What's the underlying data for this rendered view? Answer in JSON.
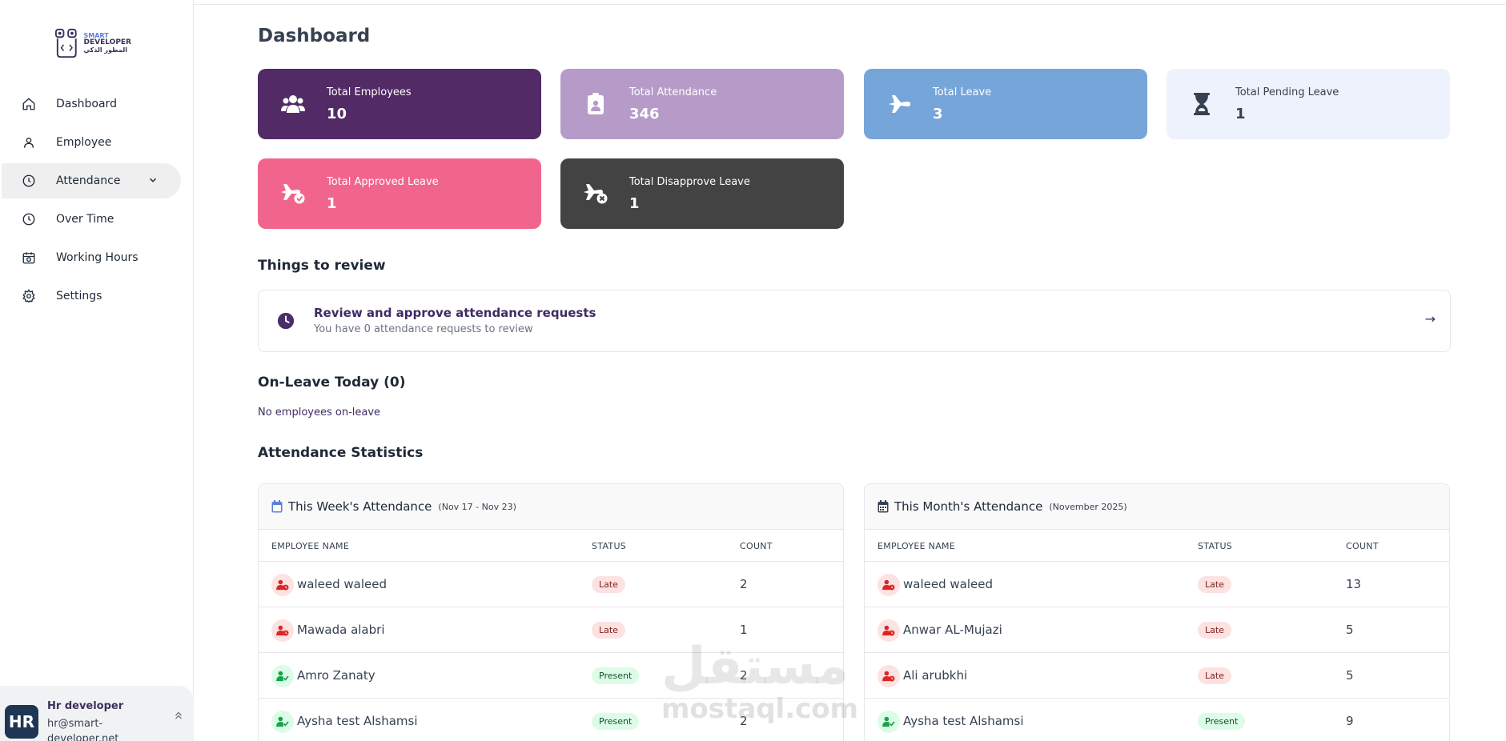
{
  "app": {
    "logo_text": [
      "SMART",
      "DEVELOPER",
      "المطور الذكي"
    ]
  },
  "sidebar": {
    "items": [
      {
        "label": "Dashboard",
        "icon": "home-icon"
      },
      {
        "label": "Employee",
        "icon": "user-icon"
      },
      {
        "label": "Attendance",
        "icon": "clock-icon"
      },
      {
        "label": "Over Time",
        "icon": "clock-icon"
      },
      {
        "label": "Working Hours",
        "icon": "calendar-clock-icon"
      },
      {
        "label": "Settings",
        "icon": "gear-icon"
      }
    ],
    "active": "Attendance",
    "user": {
      "avatar_text": "HR",
      "name": "Hr developer",
      "email": "hr@smart-developer.net"
    }
  },
  "main": {
    "title": "Dashboard",
    "stats": [
      {
        "label": "Total Employees",
        "value": "10",
        "icon": "users-icon",
        "bg": "#522a66",
        "fg": "#ffffff"
      },
      {
        "label": "Total Attendance",
        "value": "346",
        "icon": "clipboard-user-icon",
        "bg": "#b69bc9",
        "fg": "#ffffff"
      },
      {
        "label": "Total Leave",
        "value": "3",
        "icon": "plane-icon",
        "bg": "#76a5d9",
        "fg": "#ffffff"
      },
      {
        "label": "Total Pending Leave",
        "value": "1",
        "icon": "hourglass-icon",
        "bg": "#eef2fd",
        "fg": "#374151"
      },
      {
        "label": "Total Approved Leave",
        "value": "1",
        "icon": "plane-check-icon",
        "bg": "#f1658d",
        "fg": "#ffffff"
      },
      {
        "label": "Total Disapprove Leave",
        "value": "1",
        "icon": "plane-x-icon",
        "bg": "#434343",
        "fg": "#ffffff"
      }
    ],
    "review": {
      "section_title": "Things to review",
      "title": "Review and approve attendance requests",
      "subtitle": "You have 0 attendance requests to review",
      "arrow": "→"
    },
    "on_leave": {
      "title": "On-Leave Today (0)",
      "empty_text": "No employees on-leave"
    },
    "attendance_stats": {
      "title": "Attendance Statistics",
      "columns": [
        "EMPLOYEE NAME",
        "STATUS",
        "COUNT"
      ],
      "week": {
        "title": "This Week's Attendance",
        "range": "(Nov 17 - Nov 23)",
        "rows": [
          {
            "name": "waleed waleed",
            "status": "Late",
            "count": "2"
          },
          {
            "name": "Mawada alabri",
            "status": "Late",
            "count": "1"
          },
          {
            "name": "Amro Zanaty",
            "status": "Present",
            "count": "2"
          },
          {
            "name": "Aysha test Alshamsi",
            "status": "Present",
            "count": "2"
          }
        ]
      },
      "month": {
        "title": "This Month's Attendance",
        "range": "(November 2025)",
        "rows": [
          {
            "name": "waleed waleed",
            "status": "Late",
            "count": "13"
          },
          {
            "name": "Anwar AL-Mujazi",
            "status": "Late",
            "count": "5"
          },
          {
            "name": "Ali arubkhi",
            "status": "Late",
            "count": "5"
          },
          {
            "name": "Aysha test Alshamsi",
            "status": "Present",
            "count": "9"
          }
        ]
      }
    }
  },
  "watermark": {
    "ar": "مستقل",
    "en": "mostaql.com"
  }
}
